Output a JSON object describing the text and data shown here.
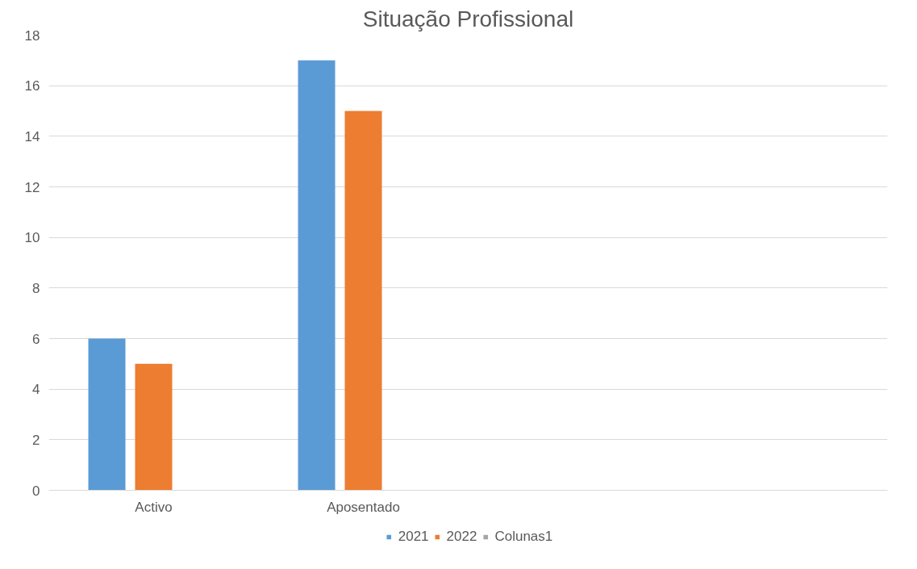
{
  "chart_data": {
    "type": "bar",
    "title": "Situação Profissional",
    "categories": [
      "Activo",
      "Aposentado",
      null,
      null
    ],
    "series": [
      {
        "name": "2021",
        "color": "#5b9bd5",
        "values": [
          6,
          17,
          null,
          null
        ]
      },
      {
        "name": "2022",
        "color": "#ed7d31",
        "values": [
          5,
          15,
          null,
          null
        ]
      },
      {
        "name": "Colunas1",
        "color": "#a5a5a5",
        "values": [
          null,
          null,
          null,
          null
        ]
      }
    ],
    "ylim": [
      0,
      18
    ],
    "yticks": [
      0,
      2,
      4,
      6,
      8,
      10,
      12,
      14,
      16,
      18
    ],
    "grid": "y",
    "legend": "bottom"
  }
}
